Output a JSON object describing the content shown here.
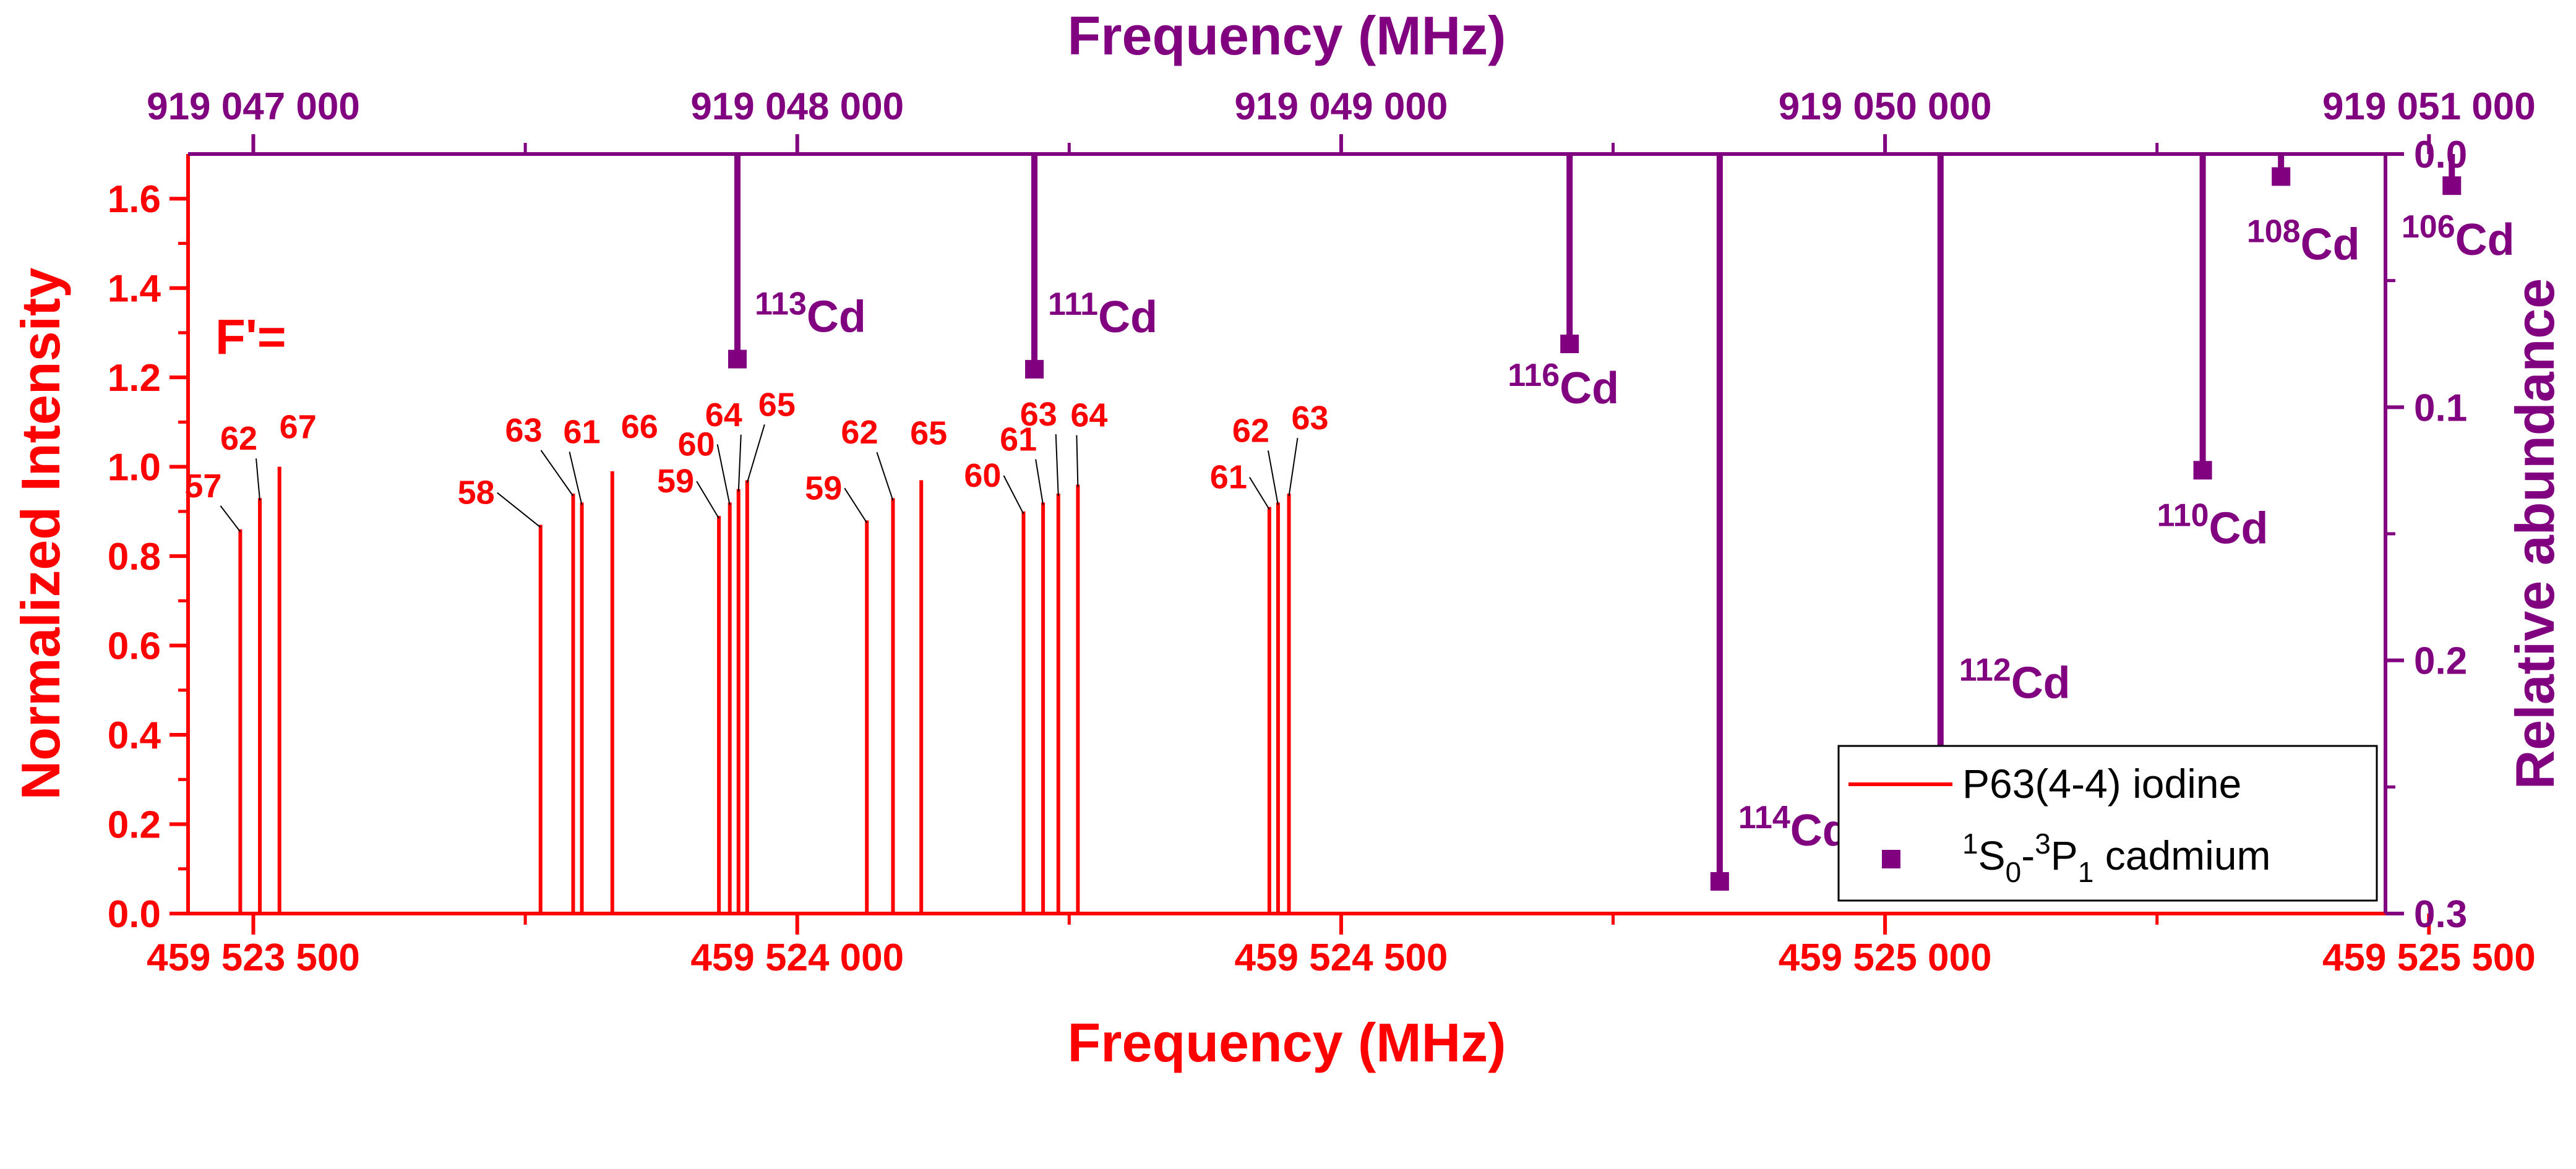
{
  "chart_data": [
    {
      "type": "bar",
      "name": "iodine",
      "xlabel": "Frequency (MHz)",
      "ylabel": "Normalized Intensity",
      "xlim": [
        459523440,
        459525460
      ],
      "ylim": [
        0,
        1.7
      ],
      "x_ticks": [
        {
          "value": 459523500,
          "label": "459 523 500"
        },
        {
          "value": 459524000,
          "label": "459 524 000"
        },
        {
          "value": 459524500,
          "label": "459 524 500"
        },
        {
          "value": 459525000,
          "label": "459 525 000"
        },
        {
          "value": 459525500,
          "label": "459 525 500"
        }
      ],
      "y_ticks": [
        {
          "value": 0.0,
          "label": "0.0"
        },
        {
          "value": 0.2,
          "label": "0.2"
        },
        {
          "value": 0.4,
          "label": "0.4"
        },
        {
          "value": 0.6,
          "label": "0.6"
        },
        {
          "value": 0.8,
          "label": "0.8"
        },
        {
          "value": 1.0,
          "label": "1.0"
        },
        {
          "value": 1.2,
          "label": "1.2"
        },
        {
          "value": 1.4,
          "label": "1.4"
        },
        {
          "value": 1.6,
          "label": "1.6"
        }
      ],
      "annotation": "F'=",
      "series": [
        {
          "name": "P63(4-4) iodine",
          "color": "#ff0000",
          "points": [
            {
              "x": 459523488,
              "y": 0.86,
              "label": "57"
            },
            {
              "x": 459523506,
              "y": 0.93,
              "label": "62"
            },
            {
              "x": 459523524,
              "y": 1.0,
              "label": "67"
            },
            {
              "x": 459523764,
              "y": 0.87,
              "label": "58"
            },
            {
              "x": 459523794,
              "y": 0.94,
              "label": "63"
            },
            {
              "x": 459523802,
              "y": 0.92,
              "label": "61"
            },
            {
              "x": 459523830,
              "y": 0.99,
              "label": "66"
            },
            {
              "x": 459523928,
              "y": 0.89,
              "label": "59"
            },
            {
              "x": 459523938,
              "y": 0.92,
              "label": "60"
            },
            {
              "x": 459523946,
              "y": 0.95,
              "label": "64"
            },
            {
              "x": 459523954,
              "y": 0.97,
              "label": "65"
            },
            {
              "x": 459524064,
              "y": 0.88,
              "label": "59"
            },
            {
              "x": 459524088,
              "y": 0.93,
              "label": "62"
            },
            {
              "x": 459524114,
              "y": 0.97,
              "label": "65"
            },
            {
              "x": 459524208,
              "y": 0.9,
              "label": "60"
            },
            {
              "x": 459524226,
              "y": 0.92,
              "label": "61"
            },
            {
              "x": 459524240,
              "y": 0.94,
              "label": "63"
            },
            {
              "x": 459524258,
              "y": 0.96,
              "label": "64"
            },
            {
              "x": 459524434,
              "y": 0.91,
              "label": "61"
            },
            {
              "x": 459524442,
              "y": 0.92,
              "label": "62"
            },
            {
              "x": 459524452,
              "y": 0.94,
              "label": "63"
            }
          ]
        }
      ]
    },
    {
      "type": "scatter",
      "name": "cadmium",
      "xlabel": "Frequency (MHz)",
      "ylabel": "Relative abundance",
      "xlim": [
        919046880,
        919050920
      ],
      "ylim": [
        0,
        0.3
      ],
      "y_inverted": true,
      "x_ticks": [
        {
          "value": 919047000,
          "label": "919 047 000"
        },
        {
          "value": 919048000,
          "label": "919 048 000"
        },
        {
          "value": 919049000,
          "label": "919 049 000"
        },
        {
          "value": 919050000,
          "label": "919 050 000"
        },
        {
          "value": 919051000,
          "label": "919 051 000"
        }
      ],
      "y_ticks": [
        {
          "value": 0.0,
          "label": "0.0"
        },
        {
          "value": 0.1,
          "label": "0.1"
        },
        {
          "value": 0.2,
          "label": "0.2"
        },
        {
          "value": 0.3,
          "label": "0.3"
        }
      ],
      "series": [
        {
          "name": "1S0-3P1 cadmium",
          "legend": {
            "sup1": "1",
            "mid1": "S",
            "sub1": "0",
            "dash": "-",
            "sup2": "3",
            "mid2": "P",
            "sub2": "1",
            "tail": " cadmium"
          },
          "color": "#800080",
          "points": [
            {
              "x": 919047890,
              "y": 0.081,
              "mass": "113",
              "element": "Cd"
            },
            {
              "x": 919048436,
              "y": 0.085,
              "mass": "111",
              "element": "Cd"
            },
            {
              "x": 919049420,
              "y": 0.075,
              "mass": "116",
              "element": "Cd"
            },
            {
              "x": 919049696,
              "y": 0.2873,
              "mass": "114",
              "element": "Cd"
            },
            {
              "x": 919050102,
              "y": 0.2413,
              "mass": "112",
              "element": "Cd"
            },
            {
              "x": 919050584,
              "y": 0.1249,
              "mass": "110",
              "element": "Cd"
            },
            {
              "x": 919050728,
              "y": 0.0089,
              "mass": "108",
              "element": "Cd"
            },
            {
              "x": 919051042,
              "y": 0.0125,
              "mass": "106",
              "element": "Cd"
            }
          ]
        }
      ]
    }
  ],
  "legend": {
    "iodine_label": "P63(4-4) iodine"
  }
}
